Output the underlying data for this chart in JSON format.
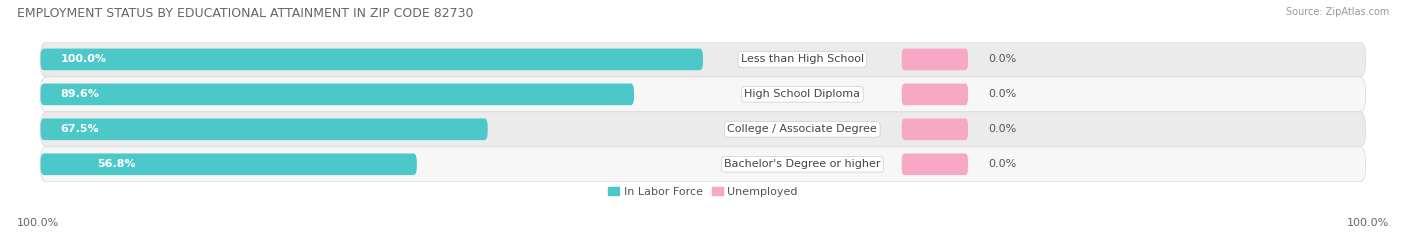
{
  "title": "EMPLOYMENT STATUS BY EDUCATIONAL ATTAINMENT IN ZIP CODE 82730",
  "source": "Source: ZipAtlas.com",
  "categories": [
    "Less than High School",
    "High School Diploma",
    "College / Associate Degree",
    "Bachelor's Degree or higher"
  ],
  "labor_force_pct": [
    100.0,
    89.6,
    67.5,
    56.8
  ],
  "unemployed_pct": [
    0.0,
    0.0,
    0.0,
    0.0
  ],
  "labor_force_color": "#4dc8c8",
  "unemployed_color": "#f7a8c4",
  "row_bg_color_odd": "#ebebeb",
  "row_bg_color_even": "#f7f7f7",
  "left_axis_label": "100.0%",
  "right_axis_label": "100.0%",
  "legend_labor": "In Labor Force",
  "legend_unemployed": "Unemployed",
  "title_fontsize": 9,
  "source_fontsize": 7,
  "bar_label_fontsize": 8,
  "cat_label_fontsize": 8,
  "axis_label_fontsize": 8,
  "legend_fontsize": 8,
  "bar_height": 0.62,
  "max_value": 100.0,
  "background_color": "#ffffff",
  "label_inside_color": "#ffffff",
  "label_outside_color": "#555555",
  "inside_threshold": 60.0,
  "unemp_bar_width": 5.0
}
